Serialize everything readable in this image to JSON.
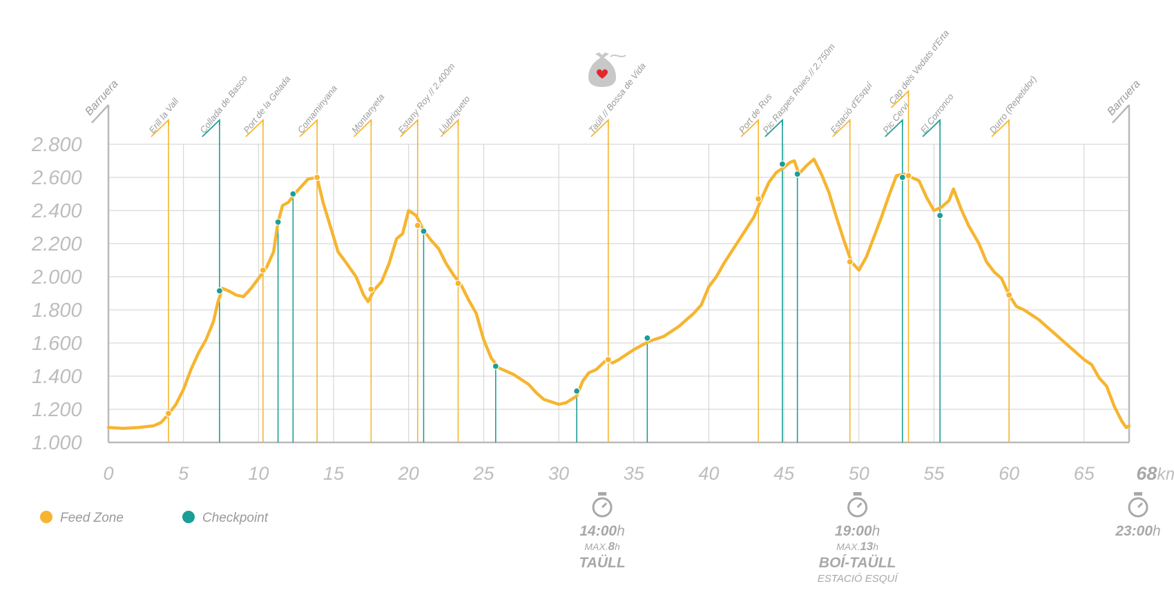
{
  "colors": {
    "feed": "#F6B530",
    "checkpoint": "#1A9E96",
    "grid": "#cfcfcf",
    "axis": "#b9b9b9",
    "text": "#9a9a9a"
  },
  "chart_data": {
    "type": "area",
    "x_unit": "km",
    "xlim": [
      0,
      68
    ],
    "ylim": [
      1000,
      2800
    ],
    "x_ticks": [
      0,
      5,
      10,
      15,
      20,
      25,
      30,
      35,
      40,
      45,
      50,
      55,
      60,
      65
    ],
    "x_tick_labels": [
      "0",
      "5",
      "10",
      "15",
      "20",
      "25",
      "30",
      "35",
      "40",
      "45",
      "50",
      "55",
      "60",
      "65"
    ],
    "x_end_label": "68",
    "x_end_unit": "km",
    "y_ticks": [
      1000,
      1200,
      1400,
      1600,
      1800,
      2000,
      2200,
      2400,
      2600,
      2800
    ],
    "y_tick_labels": [
      "1.000",
      "1.200",
      "1.400",
      "1.600",
      "1.800",
      "2.000",
      "2.200",
      "2.400",
      "2.600",
      "2.800"
    ],
    "profile": [
      [
        0,
        1090
      ],
      [
        1,
        1085
      ],
      [
        2,
        1090
      ],
      [
        3,
        1100
      ],
      [
        3.5,
        1120
      ],
      [
        4,
        1170
      ],
      [
        4.5,
        1230
      ],
      [
        5,
        1320
      ],
      [
        5.5,
        1440
      ],
      [
        6,
        1540
      ],
      [
        6.5,
        1620
      ],
      [
        7,
        1730
      ],
      [
        7.3,
        1850
      ],
      [
        7.6,
        1930
      ],
      [
        8,
        1915
      ],
      [
        8.5,
        1890
      ],
      [
        9,
        1880
      ],
      [
        9.5,
        1930
      ],
      [
        10,
        1990
      ],
      [
        10.5,
        2050
      ],
      [
        11,
        2150
      ],
      [
        11.3,
        2330
      ],
      [
        11.6,
        2430
      ],
      [
        12,
        2450
      ],
      [
        12.4,
        2500
      ],
      [
        12.8,
        2540
      ],
      [
        13.3,
        2590
      ],
      [
        13.9,
        2600
      ],
      [
        14.3,
        2450
      ],
      [
        14.8,
        2300
      ],
      [
        15.3,
        2150
      ],
      [
        15.8,
        2090
      ],
      [
        16.5,
        2000
      ],
      [
        17,
        1890
      ],
      [
        17.3,
        1850
      ],
      [
        17.7,
        1920
      ],
      [
        18.2,
        1970
      ],
      [
        18.7,
        2080
      ],
      [
        19.2,
        2230
      ],
      [
        19.6,
        2260
      ],
      [
        20,
        2400
      ],
      [
        20.5,
        2370
      ],
      [
        21,
        2280
      ],
      [
        21.5,
        2220
      ],
      [
        22,
        2170
      ],
      [
        22.5,
        2080
      ],
      [
        23,
        2010
      ],
      [
        23.5,
        1950
      ],
      [
        24,
        1860
      ],
      [
        24.5,
        1780
      ],
      [
        25,
        1620
      ],
      [
        25.5,
        1510
      ],
      [
        26,
        1450
      ],
      [
        27,
        1410
      ],
      [
        28,
        1350
      ],
      [
        28.5,
        1300
      ],
      [
        29,
        1260
      ],
      [
        30,
        1230
      ],
      [
        30.5,
        1240
      ],
      [
        31.2,
        1280
      ],
      [
        31.6,
        1370
      ],
      [
        32,
        1420
      ],
      [
        32.5,
        1440
      ],
      [
        33.2,
        1500
      ],
      [
        33.6,
        1480
      ],
      [
        34,
        1500
      ],
      [
        35,
        1560
      ],
      [
        36,
        1610
      ],
      [
        37,
        1640
      ],
      [
        38,
        1700
      ],
      [
        39,
        1780
      ],
      [
        39.5,
        1830
      ],
      [
        40,
        1940
      ],
      [
        40.5,
        2000
      ],
      [
        41,
        2080
      ],
      [
        42,
        2220
      ],
      [
        43,
        2360
      ],
      [
        43.5,
        2470
      ],
      [
        44,
        2570
      ],
      [
        44.5,
        2630
      ],
      [
        45,
        2660
      ],
      [
        45.4,
        2690
      ],
      [
        45.7,
        2700
      ],
      [
        46,
        2620
      ],
      [
        46.5,
        2670
      ],
      [
        47,
        2710
      ],
      [
        47.5,
        2620
      ],
      [
        48,
        2510
      ],
      [
        48.5,
        2360
      ],
      [
        49,
        2220
      ],
      [
        49.5,
        2090
      ],
      [
        50,
        2040
      ],
      [
        50.5,
        2120
      ],
      [
        51,
        2240
      ],
      [
        51.5,
        2360
      ],
      [
        52,
        2490
      ],
      [
        52.5,
        2610
      ],
      [
        53,
        2620
      ],
      [
        53.5,
        2600
      ],
      [
        54,
        2580
      ],
      [
        54.5,
        2480
      ],
      [
        55,
        2400
      ],
      [
        55.5,
        2420
      ],
      [
        56,
        2460
      ],
      [
        56.3,
        2530
      ],
      [
        56.8,
        2410
      ],
      [
        57.3,
        2310
      ],
      [
        58,
        2200
      ],
      [
        58.5,
        2090
      ],
      [
        59,
        2030
      ],
      [
        59.5,
        1990
      ],
      [
        60,
        1890
      ],
      [
        60.5,
        1820
      ],
      [
        61,
        1800
      ],
      [
        62,
        1740
      ],
      [
        63,
        1660
      ],
      [
        64,
        1580
      ],
      [
        65,
        1500
      ],
      [
        65.5,
        1470
      ],
      [
        66,
        1390
      ],
      [
        66.5,
        1340
      ],
      [
        67,
        1220
      ],
      [
        67.5,
        1130
      ],
      [
        67.8,
        1090
      ],
      [
        68,
        1100
      ]
    ],
    "markers": [
      {
        "km": 4.0,
        "type": "feed",
        "label": "Erill la Vall",
        "level": 1,
        "top": 160
      },
      {
        "km": 7.4,
        "type": "checkpoint",
        "label": "Collada de Basco",
        "level": 2,
        "top": 160
      },
      {
        "km": 10.3,
        "type": "feed",
        "label": "Port de la Gelada",
        "level": 1,
        "top": 160
      },
      {
        "km": 11.3,
        "type": "checkpoint",
        "label": "",
        "level": 0,
        "top": 0
      },
      {
        "km": 12.3,
        "type": "checkpoint",
        "label": "",
        "level": 0,
        "top": 0
      },
      {
        "km": 13.9,
        "type": "feed",
        "label": "Comaminyana",
        "level": 2,
        "top": 160
      },
      {
        "km": 17.5,
        "type": "feed",
        "label": "Montanyeta",
        "level": 1,
        "top": 160
      },
      {
        "km": 20.6,
        "type": "feed",
        "label": "Estany Roy // 2.400m",
        "level": 1,
        "top": 160
      },
      {
        "km": 21.0,
        "type": "checkpoint",
        "label": "",
        "level": 0,
        "top": 0
      },
      {
        "km": 23.3,
        "type": "feed",
        "label": "Llubriqueto",
        "level": 2,
        "top": 160
      },
      {
        "km": 25.8,
        "type": "checkpoint",
        "label": "",
        "level": 0,
        "top": 0
      },
      {
        "km": 31.2,
        "type": "checkpoint",
        "label": "",
        "level": 0,
        "top": 0
      },
      {
        "km": 33.3,
        "type": "feed",
        "label": "Taüll // Bossa de Vida",
        "level": 1,
        "top": 160
      },
      {
        "km": 35.9,
        "type": "checkpoint",
        "label": "",
        "level": 0,
        "top": 0
      },
      {
        "km": 43.3,
        "type": "feed",
        "label": "Port de Rus",
        "level": 1,
        "top": 160
      },
      {
        "km": 44.9,
        "type": "checkpoint",
        "label": "Pic Raspes Roies // 2.750m",
        "level": 1,
        "top": 160
      },
      {
        "km": 45.9,
        "type": "checkpoint",
        "label": "",
        "level": 0,
        "top": 0
      },
      {
        "km": 49.4,
        "type": "feed",
        "label": "Estació d'Esquí",
        "level": 2,
        "top": 160
      },
      {
        "km": 52.9,
        "type": "checkpoint",
        "label": "Pic Cervi",
        "level": 1,
        "top": 160
      },
      {
        "km": 53.3,
        "type": "feed",
        "label": "Cap dels Vedats d'Erta",
        "level": 1,
        "top": 118
      },
      {
        "km": 55.4,
        "type": "checkpoint",
        "label": "El Corronco",
        "level": 2,
        "top": 160
      },
      {
        "km": 60.0,
        "type": "feed",
        "label": "Durro (Repetidor)",
        "level": 2,
        "top": 160
      }
    ],
    "bottom_only_lines": [
      {
        "km": 11.3,
        "type": "checkpoint",
        "elev": 2330
      },
      {
        "km": 12.3,
        "type": "checkpoint",
        "elev": 2500
      },
      {
        "km": 21.0,
        "type": "checkpoint",
        "elev": 2280
      },
      {
        "km": 25.8,
        "type": "checkpoint",
        "elev": 1460
      },
      {
        "km": 31.2,
        "type": "checkpoint",
        "elev": 1310
      },
      {
        "km": 35.9,
        "type": "checkpoint",
        "elev": 1630
      },
      {
        "km": 45.9,
        "type": "checkpoint",
        "elev": 2620
      }
    ],
    "dots": [
      {
        "km": 4.0,
        "elev": 1175,
        "type": "feed"
      },
      {
        "km": 7.4,
        "elev": 1915,
        "type": "checkpoint"
      },
      {
        "km": 10.3,
        "elev": 2040,
        "type": "feed"
      },
      {
        "km": 11.3,
        "elev": 2330,
        "type": "checkpoint"
      },
      {
        "km": 12.3,
        "elev": 2500,
        "type": "checkpoint"
      },
      {
        "km": 13.9,
        "elev": 2600,
        "type": "feed"
      },
      {
        "km": 17.5,
        "elev": 1925,
        "type": "feed"
      },
      {
        "km": 20.6,
        "elev": 2310,
        "type": "feed"
      },
      {
        "km": 21.0,
        "elev": 2275,
        "type": "checkpoint"
      },
      {
        "km": 23.3,
        "elev": 1960,
        "type": "feed"
      },
      {
        "km": 25.8,
        "elev": 1460,
        "type": "checkpoint"
      },
      {
        "km": 31.2,
        "elev": 1310,
        "type": "checkpoint"
      },
      {
        "km": 33.3,
        "elev": 1500,
        "type": "feed"
      },
      {
        "km": 35.9,
        "elev": 1630,
        "type": "checkpoint"
      },
      {
        "km": 43.3,
        "elev": 2470,
        "type": "feed"
      },
      {
        "km": 44.9,
        "elev": 2680,
        "type": "checkpoint"
      },
      {
        "km": 45.9,
        "elev": 2620,
        "type": "checkpoint"
      },
      {
        "km": 49.4,
        "elev": 2090,
        "type": "feed"
      },
      {
        "km": 52.9,
        "elev": 2600,
        "type": "checkpoint"
      },
      {
        "km": 53.3,
        "elev": 2610,
        "type": "feed"
      },
      {
        "km": 55.4,
        "elev": 2370,
        "type": "checkpoint"
      },
      {
        "km": 60.0,
        "elev": 1890,
        "type": "feed"
      }
    ],
    "start_label": "Barruera",
    "end_label": "Barruera"
  },
  "legend": [
    {
      "label": "Feed Zone",
      "type": "feed"
    },
    {
      "label": "Checkpoint",
      "type": "checkpoint"
    }
  ],
  "cutoffs": [
    {
      "km": 32.9,
      "time": "14:00",
      "time_unit": "h",
      "max_prefix": "MAX.",
      "max_value": "8",
      "max_unit": "h",
      "place": "TAÜLL",
      "sub": ""
    },
    {
      "km": 49.9,
      "time": "19:00",
      "time_unit": "h",
      "max_prefix": "MAX.",
      "max_value": "13",
      "max_unit": "h",
      "place": "BOÍ-TAÜLL",
      "sub": "ESTACIÓ ESQUÍ"
    },
    {
      "km": 68.6,
      "time": "23:00",
      "time_unit": "h",
      "max_prefix": "",
      "max_value": "",
      "max_unit": "",
      "place": "",
      "sub": ""
    }
  ],
  "icons": {
    "stopwatch": "stopwatch-icon",
    "bag": "heart-bag-icon"
  }
}
